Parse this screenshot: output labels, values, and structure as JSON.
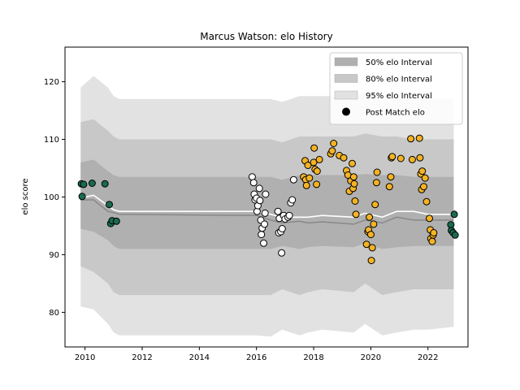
{
  "chart_data": {
    "type": "scatter",
    "title": "Marcus Watson: elo History",
    "xlabel": "",
    "ylabel": "elo score",
    "xlim": [
      2009.3,
      2023.4
    ],
    "ylim": [
      74,
      126
    ],
    "x_ticks": [
      2010,
      2012,
      2014,
      2016,
      2018,
      2020,
      2022
    ],
    "y_ticks": [
      80,
      90,
      100,
      110,
      120
    ],
    "legend_position": "top-right",
    "legend": [
      {
        "label": "50% elo Interval",
        "kind": "band",
        "color": "#b0b0b0"
      },
      {
        "label": "80% elo Interval",
        "kind": "band",
        "color": "#c8c8c8"
      },
      {
        "label": "95% elo Interval",
        "kind": "band",
        "color": "#e2e2e2"
      },
      {
        "label": "Post Match elo",
        "kind": "marker",
        "color": "#000000"
      }
    ],
    "colors": {
      "band_95": "#e2e2e2",
      "band_80": "#c8c8c8",
      "band_50": "#b0b0b0",
      "median_line": "#ffffff",
      "lower_line": "#888888",
      "green_points": "#1a6b4e",
      "white_points": "#ffffff",
      "orange_points": "#f5b324"
    },
    "bands": {
      "x": [
        2009.85,
        2010.3,
        2010.8,
        2011.0,
        2011.2,
        2016.0,
        2016.5,
        2016.9,
        2017.5,
        2017.8,
        2018.3,
        2019.4,
        2019.8,
        2020.4,
        2020.9,
        2021.5,
        2022.0,
        2022.9
      ],
      "lo95": [
        81,
        80.5,
        78,
        76.5,
        76,
        76,
        75.8,
        77,
        76,
        76.5,
        77,
        76.5,
        78,
        76,
        76.5,
        77,
        77,
        77.5
      ],
      "hi95": [
        119,
        121,
        119,
        117.5,
        117,
        117,
        117,
        116.5,
        117.5,
        117.5,
        117.5,
        117.5,
        118,
        117.5,
        117.5,
        117,
        117,
        117
      ],
      "lo80": [
        88,
        87,
        85,
        83.5,
        83,
        83,
        83,
        84,
        83,
        83.5,
        84,
        83.5,
        85,
        83,
        83.5,
        84,
        84,
        84
      ],
      "hi80": [
        113,
        113.5,
        111.5,
        110.5,
        110,
        110,
        110,
        109.5,
        110.5,
        110.5,
        110.5,
        110.5,
        111,
        110.5,
        110.5,
        110,
        110,
        110
      ],
      "lo50": [
        94.5,
        94,
        92.5,
        91.5,
        91,
        91,
        91,
        91.5,
        91,
        91.3,
        91.5,
        91.3,
        92,
        91,
        91.3,
        91.5,
        91.5,
        91.5
      ],
      "hi50": [
        106,
        106.5,
        104.5,
        103.8,
        103.5,
        103.5,
        103.5,
        103,
        103.8,
        103.8,
        103.8,
        103.8,
        104,
        103.8,
        103.8,
        103.5,
        103.5,
        103.5
      ],
      "median": [
        99.8,
        100.3,
        98.5,
        97.8,
        97.5,
        97.5,
        97.0,
        96.5,
        96.5,
        96.5,
        96.8,
        96.5,
        97.2,
        96.5,
        97.5,
        97.5,
        97.0,
        97.0
      ],
      "lower": [
        99.5,
        99.5,
        97.5,
        97.3,
        97.0,
        96.8,
        96.0,
        95.5,
        95.8,
        95.5,
        95.7,
        95.3,
        96.0,
        95.5,
        96.5,
        96.0,
        96.0,
        96.0
      ]
    },
    "series": [
      {
        "name": "",
        "color": "#1a6b4e",
        "points": [
          [
            2009.87,
            102.3
          ],
          [
            2009.9,
            100.1
          ],
          [
            2009.95,
            102.2
          ],
          [
            2010.25,
            102.4
          ],
          [
            2010.7,
            102.3
          ],
          [
            2010.85,
            98.7
          ],
          [
            2010.9,
            95.4
          ],
          [
            2010.95,
            95.9
          ],
          [
            2011.1,
            95.8
          ],
          [
            2022.8,
            95.2
          ],
          [
            2022.82,
            94.2
          ],
          [
            2022.88,
            93.8
          ],
          [
            2022.92,
            97.0
          ],
          [
            2022.95,
            93.4
          ]
        ]
      },
      {
        "name": "",
        "color": "#ffffff",
        "points": [
          [
            2015.85,
            103.5
          ],
          [
            2015.9,
            102.5
          ],
          [
            2015.92,
            100.5
          ],
          [
            2015.95,
            99.5
          ],
          [
            2016.0,
            99.8
          ],
          [
            2016.02,
            97.5
          ],
          [
            2016.05,
            98.5
          ],
          [
            2016.1,
            101.5
          ],
          [
            2016.12,
            99.4
          ],
          [
            2016.15,
            96.0
          ],
          [
            2016.17,
            93.5
          ],
          [
            2016.2,
            94.6
          ],
          [
            2016.25,
            92.0
          ],
          [
            2016.28,
            95.3
          ],
          [
            2016.3,
            97.2
          ],
          [
            2016.32,
            100.5
          ],
          [
            2016.75,
            97.5
          ],
          [
            2016.78,
            93.8
          ],
          [
            2016.8,
            96.3
          ],
          [
            2016.85,
            94.0
          ],
          [
            2016.88,
            90.3
          ],
          [
            2016.9,
            94.5
          ],
          [
            2016.95,
            96.8
          ],
          [
            2017.0,
            96.2
          ],
          [
            2017.1,
            96.5
          ],
          [
            2017.15,
            96.8
          ],
          [
            2017.2,
            99.0
          ],
          [
            2017.25,
            99.5
          ],
          [
            2017.3,
            103.0
          ]
        ]
      },
      {
        "name": "",
        "color": "#f5b324",
        "points": [
          [
            2017.65,
            103.5
          ],
          [
            2017.7,
            106.3
          ],
          [
            2017.72,
            103.0
          ],
          [
            2017.75,
            102.0
          ],
          [
            2017.8,
            105.5
          ],
          [
            2017.85,
            103.3
          ],
          [
            2018.0,
            106.0
          ],
          [
            2018.02,
            108.5
          ],
          [
            2018.05,
            104.8
          ],
          [
            2018.1,
            102.2
          ],
          [
            2018.12,
            104.5
          ],
          [
            2018.2,
            106.5
          ],
          [
            2018.6,
            107.5
          ],
          [
            2018.65,
            108.0
          ],
          [
            2018.7,
            109.3
          ],
          [
            2018.9,
            107.2
          ],
          [
            2019.05,
            106.8
          ],
          [
            2019.15,
            104.6
          ],
          [
            2019.2,
            103.8
          ],
          [
            2019.25,
            101.0
          ],
          [
            2019.3,
            102.8
          ],
          [
            2019.35,
            105.8
          ],
          [
            2019.38,
            101.5
          ],
          [
            2019.4,
            103.5
          ],
          [
            2019.42,
            102.3
          ],
          [
            2019.45,
            99.3
          ],
          [
            2019.48,
            97.0
          ],
          [
            2019.85,
            91.8
          ],
          [
            2019.9,
            94.0
          ],
          [
            2019.92,
            94.3
          ],
          [
            2019.95,
            96.5
          ],
          [
            2020.0,
            93.5
          ],
          [
            2020.02,
            89.0
          ],
          [
            2020.05,
            91.2
          ],
          [
            2020.1,
            95.3
          ],
          [
            2020.15,
            98.7
          ],
          [
            2020.2,
            102.5
          ],
          [
            2020.22,
            104.3
          ],
          [
            2020.65,
            101.8
          ],
          [
            2020.7,
            103.5
          ],
          [
            2020.72,
            106.8
          ],
          [
            2020.75,
            107.0
          ],
          [
            2021.05,
            106.7
          ],
          [
            2021.4,
            110.1
          ],
          [
            2021.45,
            106.5
          ],
          [
            2021.7,
            110.2
          ],
          [
            2021.72,
            106.8
          ],
          [
            2021.75,
            104.0
          ],
          [
            2021.78,
            101.3
          ],
          [
            2021.8,
            104.5
          ],
          [
            2021.85,
            101.8
          ],
          [
            2021.9,
            103.3
          ],
          [
            2021.95,
            99.2
          ],
          [
            2022.05,
            96.3
          ],
          [
            2022.08,
            94.3
          ],
          [
            2022.1,
            92.8
          ],
          [
            2022.15,
            92.3
          ],
          [
            2022.18,
            93.4
          ],
          [
            2022.2,
            93.8
          ]
        ]
      }
    ]
  }
}
